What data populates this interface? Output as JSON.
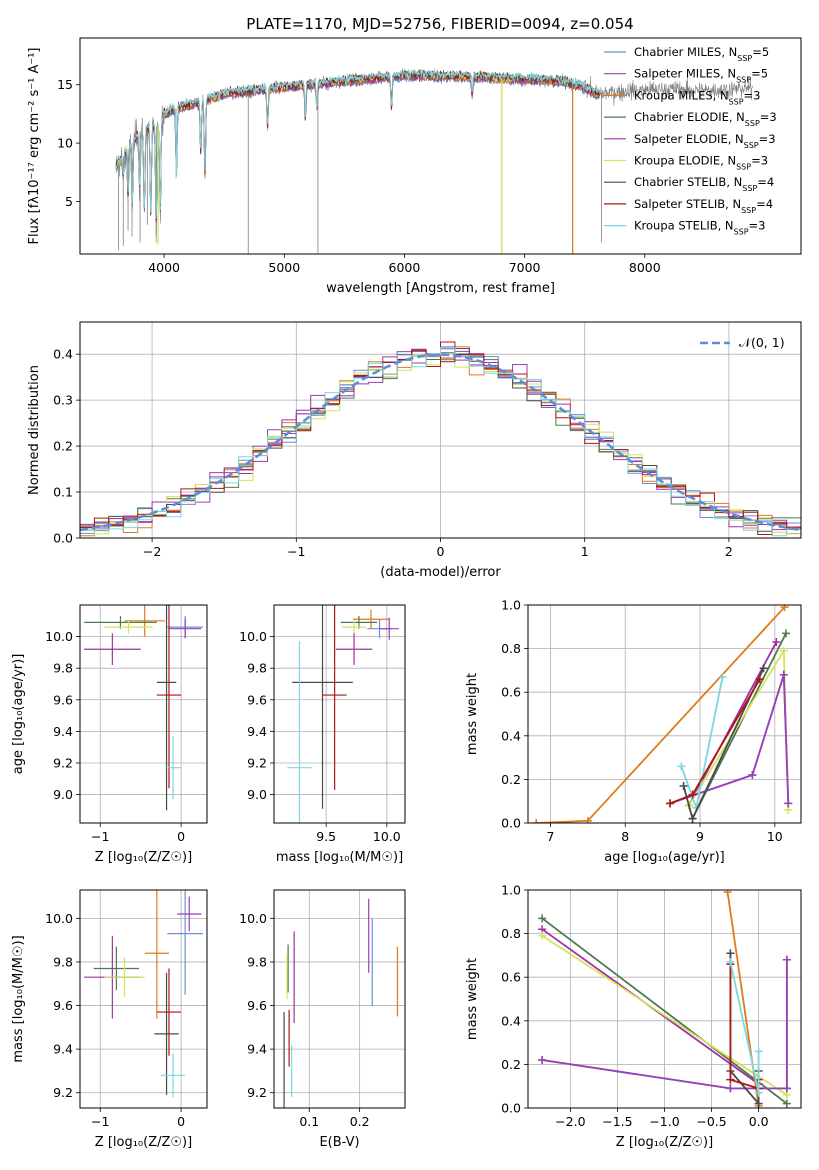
{
  "figure_title": "PLATE=1170, MJD=52756, FIBERID=0094, z=0.054",
  "colors": {
    "chabrier_miles": "#6a8fd8",
    "salpeter_miles": "#9b3fb5",
    "kroupa_miles": "#e07b1c",
    "chabrier_elodie": "#4f7a4f",
    "salpeter_elodie": "#a52fa5",
    "kroupa_elodie": "#d4e35a",
    "chabrier_stelib": "#4a4a4a",
    "salpeter_stelib": "#b01515",
    "kroupa_stelib": "#7ad8e0",
    "data": "#808080",
    "normal": "#5b8dd9"
  },
  "chart_data": [
    {
      "id": "spectrum",
      "type": "line",
      "title": "PLATE=1170, MJD=52756, FIBERID=0094, z=0.054",
      "xlabel": "wavelength [Angstrom, rest frame]",
      "ylabel": "Flux [fλ10⁻¹⁷ erg cm⁻² s⁻¹ A⁻¹]",
      "xlim": [
        3300,
        9300
      ],
      "ylim": [
        0.5,
        19
      ],
      "xticks": [
        4000,
        5000,
        6000,
        7000,
        8000
      ],
      "yticks": [
        5,
        10,
        15
      ],
      "legend_position": "top-right",
      "legend": [
        {
          "name": "Chabrier MILES, N",
          "sub": "SSP",
          "tail": "=5"
        },
        {
          "name": "Salpeter MILES, N",
          "sub": "SSP",
          "tail": "=5"
        },
        {
          "name": "Kroupa MILES, N",
          "sub": "SSP",
          "tail": "=3"
        },
        {
          "name": "Chabrier ELODIE, N",
          "sub": "SSP",
          "tail": "=3"
        },
        {
          "name": "Salpeter ELODIE, N",
          "sub": "SSP",
          "tail": "=3"
        },
        {
          "name": "Kroupa ELODIE, N",
          "sub": "SSP",
          "tail": "=3"
        },
        {
          "name": "Chabrier STELIB, N",
          "sub": "SSP",
          "tail": "=4"
        },
        {
          "name": "Salpeter STELIB, N",
          "sub": "SSP",
          "tail": "=4"
        },
        {
          "name": "Kroupa STELIB, N",
          "sub": "SSP",
          "tail": "=3"
        }
      ],
      "continuum": [
        [
          3600,
          8
        ],
        [
          3700,
          9.5
        ],
        [
          3800,
          11
        ],
        [
          3950,
          11.5
        ],
        [
          4000,
          12.5
        ],
        [
          4100,
          13
        ],
        [
          4300,
          13.5
        ],
        [
          4500,
          14.2
        ],
        [
          5000,
          14.8
        ],
        [
          5500,
          15.3
        ],
        [
          6000,
          15.8
        ],
        [
          6500,
          15.7
        ],
        [
          7000,
          15.5
        ],
        [
          7300,
          15.3
        ],
        [
          7500,
          14.8
        ],
        [
          7600,
          14.2
        ],
        [
          7700,
          14.3
        ],
        [
          7900,
          14.5
        ],
        [
          8200,
          14.6
        ],
        [
          8500,
          14.5
        ],
        [
          8900,
          14.7
        ]
      ],
      "models_range": [
        3600,
        7620
      ],
      "absorption": [
        [
          3660,
          7
        ],
        [
          3700,
          5
        ],
        [
          3735,
          4.5
        ],
        [
          3797,
          6
        ],
        [
          3835,
          4
        ],
        [
          3889,
          3.5
        ],
        [
          3934,
          2.5
        ],
        [
          3968,
          4
        ],
        [
          4102,
          7
        ],
        [
          4305,
          9
        ],
        [
          4340,
          7
        ],
        [
          4861,
          11
        ],
        [
          5175,
          12
        ],
        [
          5270,
          13
        ],
        [
          5892,
          13
        ],
        [
          6563,
          14
        ]
      ],
      "data_spikes": [
        [
          3620,
          0.8
        ],
        [
          3660,
          1.2
        ],
        [
          3700,
          2.5
        ],
        [
          3733,
          2
        ],
        [
          3800,
          1.5
        ],
        [
          3860,
          3
        ],
        [
          3935,
          2
        ],
        [
          4700,
          0.5
        ],
        [
          5280,
          0.5
        ],
        [
          6810,
          0.5
        ],
        [
          7400,
          0.5
        ],
        [
          7640,
          1.5
        ]
      ],
      "model_spikes": [
        [
          6810,
          0.5,
          "kroupa_elodie"
        ],
        [
          7400,
          0.5,
          "kroupa_miles"
        ],
        [
          3950,
          1.3,
          "kroupa_elodie"
        ],
        [
          4100,
          7,
          "kroupa_stelib"
        ]
      ]
    },
    {
      "id": "residuals",
      "type": "histogram",
      "xlabel": "(data-model)/error",
      "ylabel": "Normed distribution",
      "xlim": [
        -2.5,
        2.5
      ],
      "ylim": [
        0,
        0.47
      ],
      "xticks": [
        -2,
        -1,
        0,
        1,
        2
      ],
      "yticks": [
        0.0,
        0.1,
        0.2,
        0.3,
        0.4
      ],
      "legend_position": "top-right",
      "legend": "𝒩(0, 1)",
      "bin_width": 0.1
    },
    {
      "id": "age_vs_z",
      "type": "scatter",
      "xlabel": "Z [log₁₀(Z/Z☉)]",
      "ylabel": "age  [log₁₀(age/yr)]",
      "xlim": [
        -1.25,
        0.32
      ],
      "ylim": [
        8.82,
        10.2
      ],
      "xticks": [
        -1,
        0
      ],
      "yticks": [
        9.0,
        9.2,
        9.4,
        9.6,
        9.8,
        10.0
      ],
      "points": [
        {
          "s": "chabrier_miles",
          "x": 0.05,
          "xerr": 0.22,
          "y": 10.06,
          "yerr": 0.07
        },
        {
          "s": "salpeter_miles",
          "x": 0.05,
          "xerr": 0.2,
          "y": 10.05,
          "yerr": 0.06
        },
        {
          "s": "kroupa_miles",
          "x": -0.45,
          "xerr": 0.25,
          "y": 10.1,
          "yerr": 0.1
        },
        {
          "s": "chabrier_elodie",
          "x": -0.75,
          "xerr": 0.45,
          "y": 10.09,
          "yerr": 0.04
        },
        {
          "s": "salpeter_elodie",
          "x": -0.85,
          "xerr": 0.35,
          "y": 9.92,
          "yerr": 0.1
        },
        {
          "s": "kroupa_elodie",
          "x": -0.65,
          "xerr": 0.3,
          "y": 10.06,
          "yerr": 0.04
        },
        {
          "s": "chabrier_stelib",
          "x": -0.18,
          "xerr": 0.12,
          "y": 9.71,
          "yerr": 0.81
        },
        {
          "s": "salpeter_stelib",
          "x": -0.15,
          "xerr": 0.15,
          "y": 9.63,
          "yerr": 0.59
        },
        {
          "s": "kroupa_stelib",
          "x": -0.1,
          "xerr": 0.1,
          "y": 9.17,
          "yerr": 0.2
        }
      ]
    },
    {
      "id": "age_vs_mass",
      "type": "scatter",
      "xlabel": "mass [log₁₀(M/M☉)]",
      "ylabel": "",
      "xlim": [
        9.07,
        10.15
      ],
      "ylim": [
        8.82,
        10.2
      ],
      "xticks": [
        9.5,
        10.0
      ],
      "yticks": [
        9.0,
        9.2,
        9.4,
        9.6,
        9.8,
        10.0
      ],
      "points": [
        {
          "s": "chabrier_miles",
          "x": 9.94,
          "xerr": 0.1,
          "y": 10.05,
          "yerr": 0.06
        },
        {
          "s": "salpeter_miles",
          "x": 10.02,
          "xerr": 0.08,
          "y": 10.05,
          "yerr": 0.07
        },
        {
          "s": "kroupa_miles",
          "x": 9.87,
          "xerr": 0.15,
          "y": 10.11,
          "yerr": 0.06
        },
        {
          "s": "chabrier_elodie",
          "x": 9.77,
          "xerr": 0.15,
          "y": 10.09,
          "yerr": 0.04
        },
        {
          "s": "salpeter_elodie",
          "x": 9.73,
          "xerr": 0.15,
          "y": 9.92,
          "yerr": 0.1
        },
        {
          "s": "kroupa_elodie",
          "x": 9.73,
          "xerr": 0.1,
          "y": 10.06,
          "yerr": 0.04
        },
        {
          "s": "chabrier_stelib",
          "x": 9.47,
          "xerr": 0.25,
          "y": 9.71,
          "yerr": 0.8
        },
        {
          "s": "salpeter_stelib",
          "x": 9.57,
          "xerr": 0.1,
          "y": 9.63,
          "yerr": 0.6
        },
        {
          "s": "kroupa_stelib",
          "x": 9.28,
          "xerr": 0.1,
          "y": 9.17,
          "yerr": 0.8
        }
      ]
    },
    {
      "id": "mass_weight_vs_age",
      "type": "line",
      "xlabel": "age  [log₁₀(age/yr)]",
      "ylabel": "mass weight",
      "xlim": [
        6.7,
        10.35
      ],
      "ylim": [
        0,
        1.0
      ],
      "xticks": [
        7,
        8,
        9,
        10
      ],
      "yticks": [
        0.0,
        0.2,
        0.4,
        0.6,
        0.8,
        1.0
      ],
      "series": [
        {
          "s": "kroupa_miles",
          "x": [
            6.81,
            7.5,
            10.13
          ],
          "y": [
            0.0,
            0.01,
            0.99
          ]
        },
        {
          "s": "chabrier_elodie",
          "x": [
            8.9,
            10.15
          ],
          "y": [
            0.02,
            0.87
          ]
        },
        {
          "s": "salpeter_elodie",
          "x": [
            8.85,
            10.02
          ],
          "y": [
            0.08,
            0.83
          ]
        },
        {
          "s": "kroupa_elodie",
          "x": [
            8.85,
            10.12,
            10.18
          ],
          "y": [
            0.08,
            0.79,
            0.06
          ]
        },
        {
          "s": "chabrier_miles",
          "x": [
            8.6,
            9.7,
            10.12,
            10.18
          ],
          "y": [
            0.09,
            0.22,
            0.68,
            0.09
          ]
        },
        {
          "s": "salpeter_miles",
          "x": [
            8.6,
            9.7,
            10.12,
            10.18
          ],
          "y": [
            0.09,
            0.22,
            0.68,
            0.09
          ]
        },
        {
          "s": "kroupa_stelib",
          "x": [
            8.75,
            8.95,
            9.3
          ],
          "y": [
            0.26,
            0.07,
            0.67
          ]
        },
        {
          "s": "chabrier_stelib",
          "x": [
            8.78,
            8.9,
            9.85
          ],
          "y": [
            0.17,
            0.02,
            0.71
          ]
        },
        {
          "s": "salpeter_stelib",
          "x": [
            8.6,
            8.9,
            9.8
          ],
          "y": [
            0.09,
            0.13,
            0.66
          ]
        }
      ]
    },
    {
      "id": "mass_vs_z",
      "type": "scatter",
      "xlabel": "Z [log₁₀(Z/Z☉)]",
      "ylabel": "mass [log₁₀(M/M☉)]",
      "xlim": [
        -1.25,
        0.32
      ],
      "ylim": [
        9.13,
        10.13
      ],
      "xticks": [
        -1,
        0
      ],
      "yticks": [
        9.2,
        9.4,
        9.6,
        9.8,
        10.0
      ],
      "points": [
        {
          "s": "chabrier_miles",
          "x": 0.05,
          "xerr": 0.22,
          "y": 9.93,
          "yerr": 0.28
        },
        {
          "s": "salpeter_miles",
          "x": 0.1,
          "xerr": 0.15,
          "y": 10.02,
          "yerr": 0.08
        },
        {
          "s": "kroupa_miles",
          "x": -0.3,
          "xerr": 0.15,
          "y": 9.84,
          "yerr": 0.3
        },
        {
          "s": "chabrier_elodie",
          "x": -0.8,
          "xerr": 0.28,
          "y": 9.77,
          "yerr": 0.1
        },
        {
          "s": "salpeter_elodie",
          "x": -0.85,
          "xerr": 0.35,
          "y": 9.73,
          "yerr": 0.19
        },
        {
          "s": "kroupa_elodie",
          "x": -0.7,
          "xerr": 0.25,
          "y": 9.73,
          "yerr": 0.09
        },
        {
          "s": "chabrier_stelib",
          "x": -0.18,
          "xerr": 0.15,
          "y": 9.47,
          "yerr": 0.28
        },
        {
          "s": "salpeter_stelib",
          "x": -0.15,
          "xerr": 0.15,
          "y": 9.57,
          "yerr": 0.2
        },
        {
          "s": "kroupa_stelib",
          "x": -0.1,
          "xerr": 0.15,
          "y": 9.28,
          "yerr": 0.1
        }
      ]
    },
    {
      "id": "mass_vs_ebv",
      "type": "scatter",
      "xlabel": "E(B-V)",
      "ylabel": "",
      "xlim": [
        0.03,
        0.29
      ],
      "ylim": [
        9.13,
        10.13
      ],
      "xticks": [
        0.1,
        0.2
      ],
      "yticks": [
        9.2,
        9.4,
        9.6,
        9.8,
        10.0
      ],
      "points": [
        {
          "s": "chabrier_miles",
          "x": 0.225,
          "xerr": 0,
          "y": 9.8,
          "yerr": 0.2
        },
        {
          "s": "salpeter_miles",
          "x": 0.218,
          "xerr": 0,
          "y": 9.92,
          "yerr": 0.17
        },
        {
          "s": "kroupa_miles",
          "x": 0.275,
          "xerr": 0,
          "y": 9.71,
          "yerr": 0.16
        },
        {
          "s": "chabrier_elodie",
          "x": 0.058,
          "xerr": 0,
          "y": 9.77,
          "yerr": 0.11
        },
        {
          "s": "salpeter_elodie",
          "x": 0.07,
          "xerr": 0,
          "y": 9.73,
          "yerr": 0.21
        },
        {
          "s": "kroupa_elodie",
          "x": 0.056,
          "xerr": 0,
          "y": 9.73,
          "yerr": 0.1
        },
        {
          "s": "chabrier_stelib",
          "x": 0.05,
          "xerr": 0,
          "y": 9.35,
          "yerr": 0.22
        },
        {
          "s": "salpeter_stelib",
          "x": 0.06,
          "xerr": 0,
          "y": 9.45,
          "yerr": 0.13
        },
        {
          "s": "kroupa_stelib",
          "x": 0.065,
          "xerr": 0,
          "y": 9.3,
          "yerr": 0.12
        }
      ]
    },
    {
      "id": "mass_weight_vs_z",
      "type": "line",
      "xlabel": "Z [log₁₀(Z/Z☉)]",
      "ylabel": "mass weight",
      "xlim": [
        -2.45,
        0.45
      ],
      "ylim": [
        0,
        1.0
      ],
      "xticks": [
        -2.0,
        -1.5,
        -1.0,
        -0.5,
        0.0
      ],
      "yticks": [
        0.0,
        0.2,
        0.4,
        0.6,
        0.8,
        1.0
      ],
      "series": [
        {
          "s": "chabrier_elodie",
          "x": [
            -2.3,
            0.3
          ],
          "y": [
            0.87,
            0.02
          ]
        },
        {
          "s": "salpeter_elodie",
          "x": [
            -2.3,
            0.0
          ],
          "y": [
            0.82,
            0.11
          ]
        },
        {
          "s": "kroupa_elodie",
          "x": [
            -2.3,
            0.3
          ],
          "y": [
            0.79,
            0.06
          ]
        },
        {
          "s": "chabrier_miles",
          "x": [
            -2.3,
            -0.3,
            0.3,
            0.3
          ],
          "y": [
            0.22,
            0.09,
            0.09,
            0.68
          ]
        },
        {
          "s": "salpeter_miles",
          "x": [
            -2.3,
            -0.3,
            0.3,
            0.3
          ],
          "y": [
            0.22,
            0.09,
            0.09,
            0.68
          ]
        },
        {
          "s": "kroupa_miles",
          "x": [
            -0.33,
            0.0
          ],
          "y": [
            0.99,
            0.01
          ]
        },
        {
          "s": "chabrier_stelib",
          "x": [
            -0.3,
            -0.3,
            0.0,
            0.0
          ],
          "y": [
            0.71,
            0.17,
            0.02,
            0.17
          ]
        },
        {
          "s": "salpeter_stelib",
          "x": [
            -0.3,
            -0.3,
            0.0,
            0.0
          ],
          "y": [
            0.66,
            0.13,
            0.09,
            0.13
          ]
        },
        {
          "s": "kroupa_stelib",
          "x": [
            -0.3,
            0.0,
            0.0
          ],
          "y": [
            0.67,
            0.07,
            0.26
          ]
        }
      ]
    }
  ]
}
